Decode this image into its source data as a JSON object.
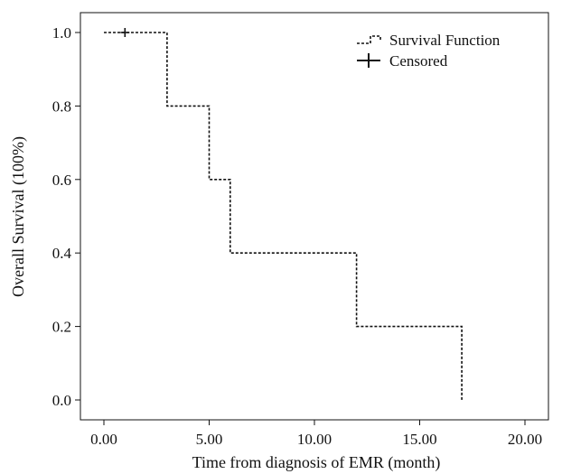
{
  "chart_data": {
    "type": "line",
    "xlabel": "Time from diagnosis of EMR (month)",
    "ylabel": "Overall Survival (100%)",
    "xlim": [
      0,
      20
    ],
    "ylim": [
      0,
      1
    ],
    "x_ticks": [
      "0.00",
      "5.00",
      "10.00",
      "15.00",
      "20.00"
    ],
    "y_ticks": [
      "0.0",
      "0.2",
      "0.4",
      "0.6",
      "0.8",
      "1.0"
    ],
    "grid": false,
    "legend": "top-right",
    "series": [
      {
        "name": "Survival Function",
        "style": "step-dashed",
        "points": [
          {
            "x": 0,
            "y": 1.0
          },
          {
            "x": 3,
            "y": 0.8
          },
          {
            "x": 5,
            "y": 0.6
          },
          {
            "x": 6,
            "y": 0.4
          },
          {
            "x": 12,
            "y": 0.2
          },
          {
            "x": 17,
            "y": 0.0
          }
        ]
      },
      {
        "name": "Censored",
        "style": "plus-marker",
        "points": [
          {
            "x": 1,
            "y": 1.0
          }
        ]
      }
    ],
    "colors": {
      "line": "#111111",
      "background": "#ffffff"
    }
  }
}
